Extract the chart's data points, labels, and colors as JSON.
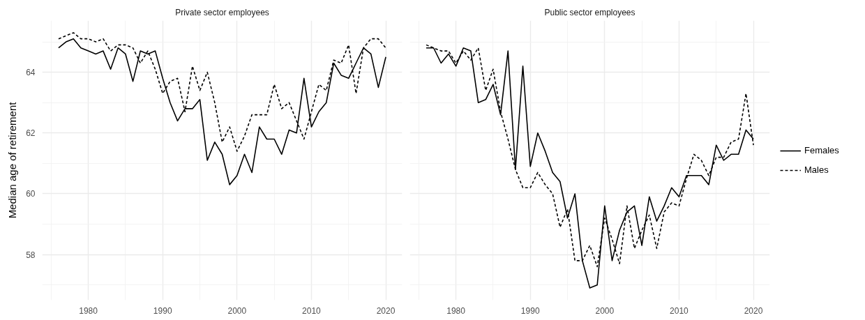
{
  "chart_data": [
    {
      "type": "line",
      "title": "Private sector employees",
      "ylabel": "Median age of retirement",
      "x": [
        1976,
        1977,
        1978,
        1979,
        1980,
        1981,
        1982,
        1983,
        1984,
        1985,
        1986,
        1987,
        1988,
        1989,
        1990,
        1991,
        1992,
        1993,
        1994,
        1995,
        1996,
        1997,
        1998,
        1999,
        2000,
        2001,
        2002,
        2003,
        2004,
        2005,
        2006,
        2007,
        2008,
        2009,
        2010,
        2011,
        2012,
        2013,
        2014,
        2015,
        2016,
        2017,
        2018,
        2019,
        2020
      ],
      "xlim": [
        1973.8,
        2022.2
      ],
      "xticks": [
        {
          "value": 1975,
          "label": null
        },
        1980,
        {
          "value": 1985,
          "label": null
        },
        1990,
        {
          "value": 1995,
          "label": null
        },
        2000,
        {
          "value": 2005,
          "label": null
        },
        2010,
        {
          "value": 2015,
          "label": null
        },
        2020
      ],
      "ylim": [
        56.5,
        65.7
      ],
      "yticks": [
        {
          "value": 57,
          "label": null
        },
        58,
        {
          "value": 59,
          "label": null
        },
        60,
        {
          "value": 61,
          "label": null
        },
        62,
        {
          "value": 63,
          "label": null
        },
        64,
        {
          "value": 65,
          "label": null
        }
      ],
      "grid": true,
      "series": [
        {
          "color": "#000000",
          "line_style": "solid",
          "values": [
            64.8,
            65.0,
            65.1,
            64.8,
            64.7,
            64.6,
            64.7,
            64.1,
            64.8,
            64.6,
            63.7,
            64.7,
            64.6,
            64.7,
            63.8,
            63.0,
            62.4,
            62.8,
            62.8,
            63.1,
            61.1,
            61.7,
            61.3,
            60.3,
            60.6,
            61.3,
            60.7,
            62.2,
            61.8,
            61.8,
            61.3,
            62.1,
            62.0,
            63.8,
            62.2,
            62.7,
            63.0,
            64.3,
            63.9,
            63.8,
            64.3,
            64.8,
            64.6,
            63.5,
            64.5
          ]
        },
        {
          "color": "#000000",
          "line_style": "dashed",
          "values": [
            65.1,
            65.2,
            65.3,
            65.1,
            65.1,
            65.0,
            65.1,
            64.7,
            64.9,
            64.9,
            64.8,
            64.3,
            64.7,
            64.1,
            63.3,
            63.7,
            63.8,
            62.7,
            64.2,
            63.4,
            64.0,
            63.0,
            61.7,
            62.2,
            61.4,
            61.9,
            62.6,
            62.6,
            62.6,
            63.6,
            62.8,
            63.0,
            62.4,
            61.8,
            62.7,
            63.6,
            63.4,
            64.4,
            64.3,
            64.9,
            63.3,
            64.8,
            65.1,
            65.1,
            64.8
          ]
        }
      ]
    },
    {
      "type": "line",
      "title": "Public sector employees",
      "x": [
        1976,
        1977,
        1978,
        1979,
        1980,
        1981,
        1982,
        1983,
        1984,
        1985,
        1986,
        1987,
        1988,
        1989,
        1990,
        1991,
        1992,
        1993,
        1994,
        1995,
        1996,
        1997,
        1998,
        1999,
        2000,
        2001,
        2002,
        2003,
        2004,
        2005,
        2006,
        2007,
        2008,
        2009,
        2010,
        2011,
        2012,
        2013,
        2014,
        2015,
        2016,
        2017,
        2018,
        2019,
        2020
      ],
      "xlim": [
        1973.8,
        2022.2
      ],
      "xticks": [
        {
          "value": 1975,
          "label": null
        },
        1980,
        {
          "value": 1985,
          "label": null
        },
        1990,
        {
          "value": 1995,
          "label": null
        },
        2000,
        {
          "value": 2005,
          "label": null
        },
        2010,
        {
          "value": 2015,
          "label": null
        },
        2020
      ],
      "ylim": [
        56.5,
        65.7
      ],
      "yticks": [
        {
          "value": 57,
          "label": null
        },
        58,
        {
          "value": 59,
          "label": null
        },
        60,
        {
          "value": 61,
          "label": null
        },
        62,
        {
          "value": 63,
          "label": null
        },
        64,
        {
          "value": 65,
          "label": null
        }
      ],
      "grid": true,
      "tick_labels": "x",
      "legend": "right",
      "series": [
        {
          "name": "Females",
          "color": "#000000",
          "line_style": "solid",
          "values": [
            64.8,
            64.8,
            64.3,
            64.6,
            64.2,
            64.8,
            64.7,
            63.0,
            63.1,
            63.6,
            62.6,
            64.7,
            60.8,
            64.2,
            60.9,
            62.0,
            61.4,
            60.7,
            60.4,
            59.2,
            60.0,
            57.8,
            56.9,
            57.0,
            59.6,
            57.8,
            58.8,
            59.4,
            59.6,
            58.3,
            59.9,
            59.1,
            59.6,
            60.2,
            59.9,
            60.6,
            60.6,
            60.6,
            60.3,
            61.6,
            61.1,
            61.3,
            61.3,
            62.1,
            61.8
          ]
        },
        {
          "name": "Males",
          "color": "#000000",
          "line_style": "dashed",
          "values": [
            64.9,
            64.8,
            64.7,
            64.7,
            64.3,
            64.7,
            64.4,
            64.8,
            63.4,
            64.1,
            62.7,
            61.8,
            60.8,
            60.2,
            60.2,
            60.7,
            60.3,
            60.0,
            58.9,
            59.5,
            57.8,
            57.8,
            58.3,
            57.6,
            59.2,
            58.5,
            57.7,
            59.6,
            58.2,
            58.8,
            59.3,
            58.2,
            59.4,
            59.7,
            59.6,
            60.5,
            61.3,
            61.1,
            60.6,
            61.2,
            61.2,
            61.7,
            61.8,
            63.3,
            61.6
          ]
        }
      ]
    }
  ]
}
